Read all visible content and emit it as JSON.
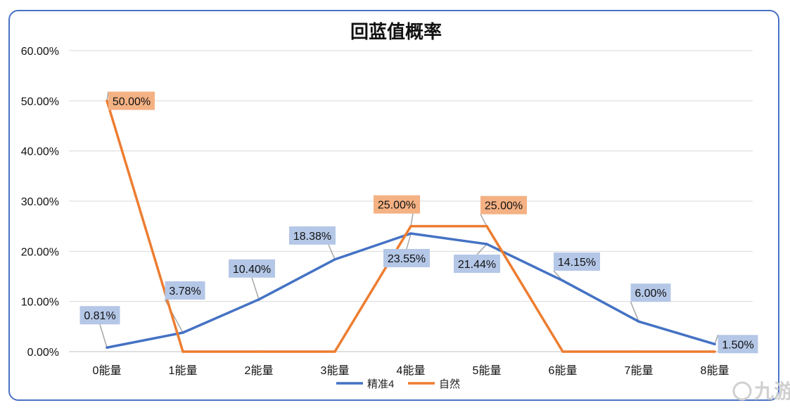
{
  "chart_data": {
    "type": "line",
    "title": "回蓝值概率",
    "categories": [
      "0能量",
      "1能量",
      "2能量",
      "3能量",
      "4能量",
      "5能量",
      "6能量",
      "7能量",
      "8能量"
    ],
    "yticks": [
      "0.00%",
      "10.00%",
      "20.00%",
      "30.00%",
      "40.00%",
      "50.00%",
      "60.00%"
    ],
    "ylim": [
      0,
      60
    ],
    "grid": true,
    "legend_position": "bottom",
    "series": [
      {
        "name": "精准4",
        "color": "#4472c4",
        "label_bg": "#b4c7e7",
        "values": [
          0.81,
          3.78,
          10.4,
          18.38,
          23.55,
          21.44,
          14.15,
          6.0,
          1.5
        ],
        "labels": [
          "0.81%",
          "3.78%",
          "10.40%",
          "18.38%",
          "23.55%",
          "21.44%",
          "14.15%",
          "6.00%",
          "1.50%"
        ]
      },
      {
        "name": "自然",
        "color": "#ed7d31",
        "label_bg": "#f4b183",
        "values": [
          50,
          0,
          0,
          0,
          25,
          25,
          0,
          0,
          0
        ],
        "labels": [
          "50.00%",
          "",
          "",
          "",
          "25.00%",
          "25.00%",
          "",
          "",
          ""
        ]
      }
    ]
  },
  "watermark": "九游"
}
